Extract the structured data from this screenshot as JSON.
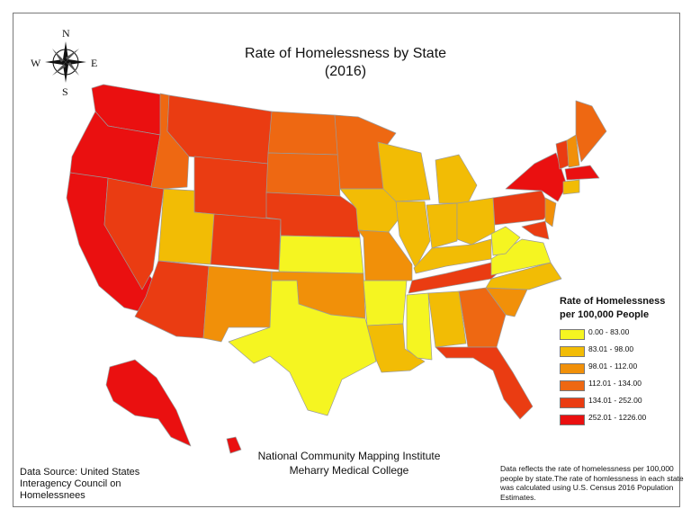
{
  "title": {
    "line1": "Rate of Homelessness by State",
    "line2": "(2016)"
  },
  "compass": {
    "north": "N",
    "south": "S",
    "east": "E",
    "west": "W"
  },
  "legend": {
    "title_line1": "Rate of Homelessness",
    "title_line2": "per 100,000 People",
    "classes": [
      {
        "label": "0.00 - 83.00",
        "color": "#f5f521"
      },
      {
        "label": "83.01 - 98.00",
        "color": "#f2bc05"
      },
      {
        "label": "98.01 - 112.00",
        "color": "#f19009"
      },
      {
        "label": "112.01 - 134.00",
        "color": "#ee6812"
      },
      {
        "label": "134.01 - 252.00",
        "color": "#ea3c12"
      },
      {
        "label": "252.01 - 1226.00",
        "color": "#ea1010"
      }
    ]
  },
  "credits": {
    "line1": "National Community Mapping Institute",
    "line2": "Meharry Medical College"
  },
  "source": "Data Source: United States Interagency Council on Homelessnees",
  "note": "Data reflects the rate of homelessness per 100,000 people by state.The rate of homlessness in each state was calculated using U.S. Census 2016 Population Estimates."
}
